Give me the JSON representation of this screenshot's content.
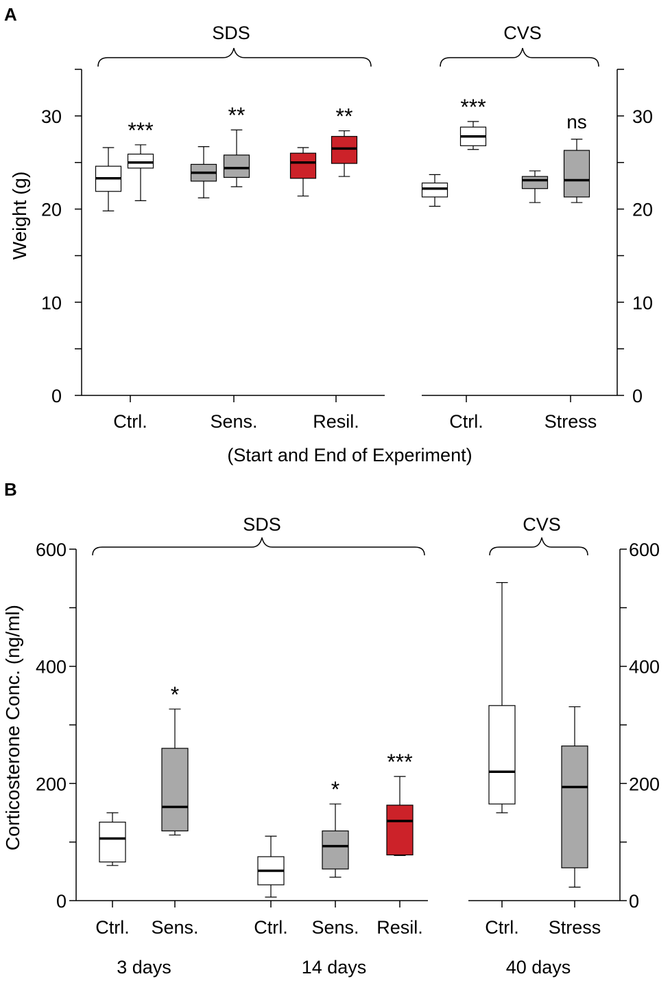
{
  "colors": {
    "white": "#ffffff",
    "gray": "#a9a9a9",
    "red": "#cc2229"
  },
  "chart_data": [
    {
      "type": "boxplot",
      "panel_label": "A",
      "ylabel": "Weight (g)",
      "xlabel": "(Start and End of Experiment)",
      "ylim": [
        0,
        35
      ],
      "ticks": [
        0,
        10,
        20,
        30
      ],
      "tick_labels": [
        "0",
        "10",
        "20",
        "30"
      ],
      "groups": [
        {
          "label": "SDS",
          "categories": [
            "Ctrl.",
            "Sens.",
            "Resil."
          ]
        },
        {
          "label": "CVS",
          "categories": [
            "Ctrl.",
            "Stress"
          ]
        }
      ],
      "series": [
        {
          "name": "SDS Ctrl. start",
          "min": 19.8,
          "q1": 21.9,
          "median": 23.3,
          "q3": 24.6,
          "max": 26.6,
          "color": "white"
        },
        {
          "name": "SDS Ctrl. end",
          "min": 20.9,
          "q1": 24.4,
          "median": 25.0,
          "q3": 25.9,
          "max": 26.9,
          "color": "white",
          "sig": "***"
        },
        {
          "name": "SDS Sens. start",
          "min": 21.2,
          "q1": 23.0,
          "median": 23.9,
          "q3": 24.8,
          "max": 26.7,
          "color": "gray"
        },
        {
          "name": "SDS Sens. end",
          "min": 22.4,
          "q1": 23.4,
          "median": 24.4,
          "q3": 25.8,
          "max": 28.5,
          "color": "gray",
          "sig": "**"
        },
        {
          "name": "SDS Resil. start",
          "min": 21.4,
          "q1": 23.3,
          "median": 25.0,
          "q3": 26.0,
          "max": 26.6,
          "color": "red"
        },
        {
          "name": "SDS Resil. end",
          "min": 23.5,
          "q1": 24.9,
          "median": 26.5,
          "q3": 27.8,
          "max": 28.4,
          "color": "red",
          "sig": "**"
        },
        {
          "name": "CVS Ctrl. start",
          "min": 20.3,
          "q1": 21.3,
          "median": 22.2,
          "q3": 22.8,
          "max": 23.7,
          "color": "white"
        },
        {
          "name": "CVS Ctrl. end",
          "min": 26.4,
          "q1": 26.8,
          "median": 27.8,
          "q3": 28.8,
          "max": 29.4,
          "color": "white",
          "sig": "***"
        },
        {
          "name": "CVS Stress start",
          "min": 20.7,
          "q1": 22.2,
          "median": 23.1,
          "q3": 23.5,
          "max": 24.1,
          "color": "gray"
        },
        {
          "name": "CVS Stress end",
          "min": 20.7,
          "q1": 21.3,
          "median": 23.1,
          "q3": 26.3,
          "max": 27.5,
          "color": "gray",
          "sig": "ns"
        }
      ]
    },
    {
      "type": "boxplot",
      "panel_label": "B",
      "ylabel": "Corticosterone Conc. (ng/ml)",
      "ylim": [
        0,
        600
      ],
      "ticks": [
        0,
        200,
        400,
        600
      ],
      "tick_labels": [
        "0",
        "200",
        "400",
        "600"
      ],
      "groups": [
        {
          "label": "SDS",
          "sublabels": [
            "3 days",
            "14 days"
          ]
        },
        {
          "label": "CVS",
          "sublabels": [
            "40 days"
          ]
        }
      ],
      "series": [
        {
          "name": "Ctrl.",
          "time": "3 days",
          "min": 60,
          "q1": 66,
          "median": 106,
          "q3": 134,
          "max": 150,
          "color": "white"
        },
        {
          "name": "Sens.",
          "time": "3 days",
          "min": 112,
          "q1": 119,
          "median": 160,
          "q3": 260,
          "max": 327,
          "color": "gray",
          "sig": "*"
        },
        {
          "name": "Ctrl.",
          "time": "14 days",
          "min": 6,
          "q1": 27,
          "median": 51,
          "q3": 75,
          "max": 110,
          "color": "white"
        },
        {
          "name": "Sens.",
          "time": "14 days",
          "min": 40,
          "q1": 54,
          "median": 93,
          "q3": 119,
          "max": 165,
          "color": "gray",
          "sig": "*"
        },
        {
          "name": "Resil.",
          "time": "14 days",
          "min": 77,
          "q1": 78,
          "median": 136,
          "q3": 163,
          "max": 212,
          "color": "red",
          "sig": "***"
        },
        {
          "name": "Ctrl.",
          "time": "40 days",
          "min": 150,
          "q1": 165,
          "median": 220,
          "q3": 333,
          "max": 543,
          "color": "white"
        },
        {
          "name": "Stress",
          "time": "40 days",
          "min": 23,
          "q1": 56,
          "median": 194,
          "q3": 264,
          "max": 331,
          "color": "gray"
        }
      ]
    }
  ]
}
